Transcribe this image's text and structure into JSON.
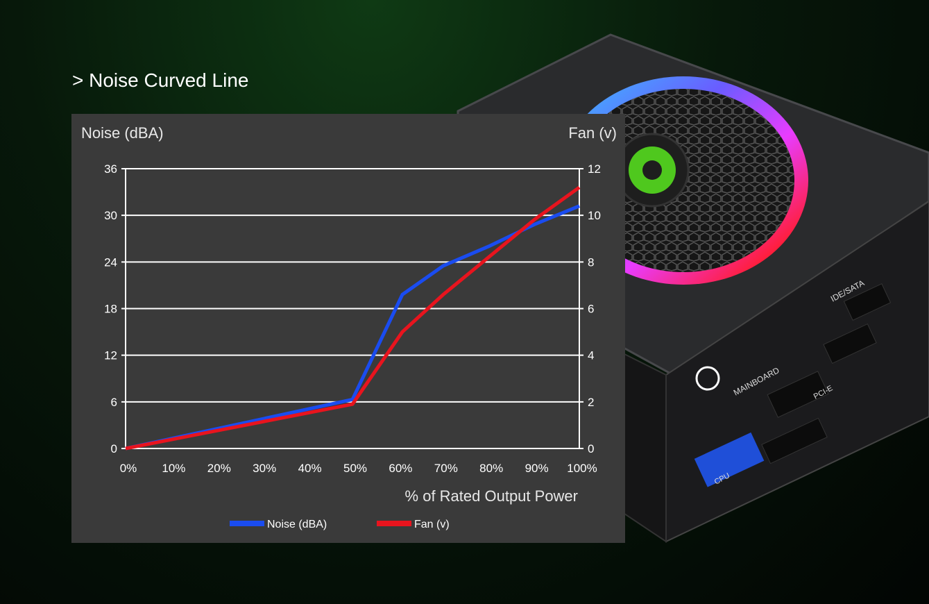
{
  "heading": "> Noise Curved Line",
  "product": {
    "labels": {
      "mainboard": "MAINBOARD",
      "ide_sata": "IDE/SATA",
      "pci_e": "PCI-E",
      "cpu": "CPU"
    }
  },
  "chart_data": {
    "type": "line",
    "xlabel": "% of Rated Output Power",
    "ylabel_left": "Noise (dBA)",
    "ylabel_right": "Fan (v)",
    "x_ticks": [
      "0%",
      "10%",
      "20%",
      "30%",
      "40%",
      "50%",
      "60%",
      "70%",
      "80%",
      "90%",
      "100%"
    ],
    "ylim_left": [
      0,
      36
    ],
    "yticks_left": [
      0,
      6,
      12,
      18,
      24,
      30,
      36
    ],
    "ylim_right": [
      0,
      12
    ],
    "yticks_right": [
      0,
      2,
      4,
      6,
      8,
      10,
      12
    ],
    "grid": true,
    "legend_position": "bottom-center",
    "series": [
      {
        "name": "Noise (dBA)",
        "axis": "left",
        "color": "#1a4cf0",
        "x": [
          0,
          50,
          61,
          70,
          80,
          90,
          100
        ],
        "values": [
          0,
          6.3,
          19.8,
          23.5,
          26,
          28.8,
          31.2
        ]
      },
      {
        "name": "Fan (v)",
        "axis": "right",
        "color": "#e8141e",
        "x": [
          0,
          50,
          61,
          70,
          80,
          90,
          100
        ],
        "values": [
          0,
          1.9,
          5.0,
          6.6,
          8.2,
          9.8,
          11.2
        ]
      }
    ]
  }
}
